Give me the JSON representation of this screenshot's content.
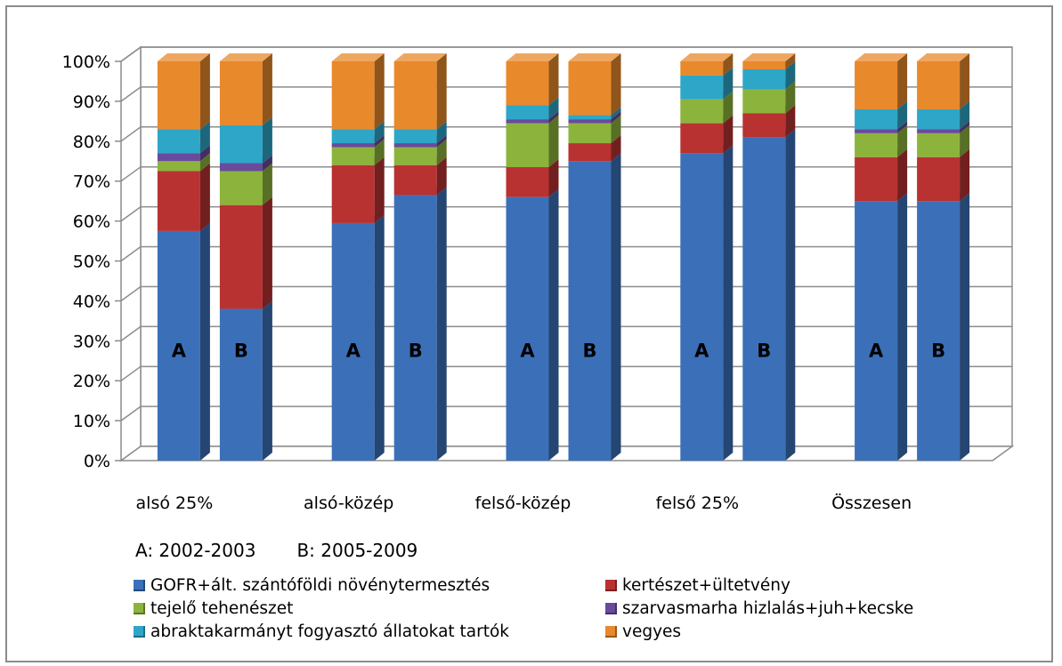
{
  "chart_data": {
    "type": "bar",
    "stacked": true,
    "percent_stacked": true,
    "three_d": true,
    "categories": [
      "alsó 25%",
      "alsó-közép",
      "felső-közép",
      "felső 25%",
      "Összesen"
    ],
    "bar_labels": [
      "A",
      "B"
    ],
    "period_note": [
      "A: 2002-2003",
      "B: 2005-2009"
    ],
    "ylim": [
      0,
      100
    ],
    "yticks": [
      "0%",
      "10%",
      "20%",
      "30%",
      "40%",
      "50%",
      "60%",
      "70%",
      "80%",
      "90%",
      "100%"
    ],
    "grid": true,
    "legend_position": "bottom",
    "series": [
      {
        "name": "GOFR+ált. szántóföldi növénytermesztés",
        "color": "#3b70b8",
        "values": [
          [
            57.5,
            38
          ],
          [
            59.5,
            66.5
          ],
          [
            66,
            75
          ],
          [
            77,
            81
          ],
          [
            65,
            65
          ]
        ]
      },
      {
        "name": "kertészet+ültetvény",
        "color": "#b83232",
        "values": [
          [
            15,
            26
          ],
          [
            14.5,
            7.5
          ],
          [
            7.5,
            4.5
          ],
          [
            7.5,
            6
          ],
          [
            11,
            11
          ]
        ]
      },
      {
        "name": "tejelő tehenészet",
        "color": "#8cb43c",
        "values": [
          [
            2.5,
            8.5
          ],
          [
            4.5,
            4.5
          ],
          [
            11,
            5
          ],
          [
            6,
            6
          ],
          [
            6,
            6
          ]
        ]
      },
      {
        "name": "szarvasmarha hizlalás+juh+kecske",
        "color": "#6a4a9c",
        "values": [
          [
            2,
            2
          ],
          [
            1,
            1
          ],
          [
            1,
            1
          ],
          [
            0,
            0
          ],
          [
            1,
            1
          ]
        ]
      },
      {
        "name": "abraktakarmányt fogyasztó állatokat tartók",
        "color": "#2ea6c8",
        "values": [
          [
            6,
            9.5
          ],
          [
            3.5,
            3.5
          ],
          [
            3.5,
            1
          ],
          [
            6,
            5
          ],
          [
            5,
            5
          ]
        ]
      },
      {
        "name": "vegyes",
        "color": "#e8892c",
        "values": [
          [
            17,
            16
          ],
          [
            17,
            17
          ],
          [
            11,
            13.5
          ],
          [
            3.5,
            2
          ],
          [
            12,
            12
          ]
        ]
      }
    ]
  }
}
